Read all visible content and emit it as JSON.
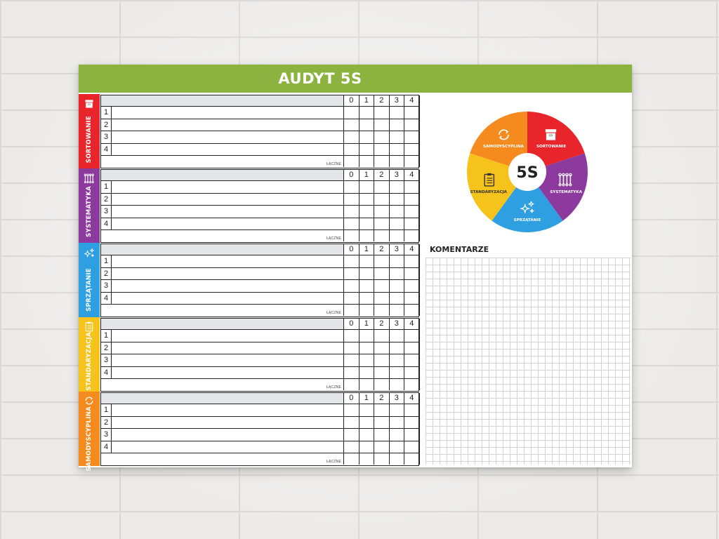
{
  "title": "AUDYT 5S",
  "score_headers": [
    "0",
    "1",
    "2",
    "3",
    "4"
  ],
  "row_numbers": [
    "1",
    "2",
    "3",
    "4"
  ],
  "total_label": "ŁĄCZNE",
  "sections": [
    {
      "label": "SORTOWANIE",
      "color": "#e8252b",
      "icon": "box-icon"
    },
    {
      "label": "SYSTEMATYKA",
      "color": "#8d3a9e",
      "icon": "tools-icon"
    },
    {
      "label": "SPRZĄTANIE",
      "color": "#2e9fe0",
      "icon": "sparkle-icon"
    },
    {
      "label": "STANDARYZACJA",
      "color": "#f6c21c",
      "icon": "clipboard-icon"
    },
    {
      "label": "SAMODYSCYPLINA",
      "color": "#f58a1f",
      "icon": "cycle-icon"
    }
  ],
  "wheel": {
    "center_label": "5S",
    "segments": [
      {
        "label": "SORTOWANIE",
        "color": "#e8252b",
        "icon": "box-icon"
      },
      {
        "label": "SYSTEMATYKA",
        "color": "#8d3a9e",
        "icon": "tools-icon"
      },
      {
        "label": "SPRZĄTANIE",
        "color": "#2e9fe0",
        "icon": "sparkle-icon"
      },
      {
        "label": "STANDARYZACJA",
        "color": "#f6c21c",
        "icon": "clipboard-icon"
      },
      {
        "label": "SAMODYSCYPLINA",
        "color": "#f58a1f",
        "icon": "cycle-icon"
      }
    ]
  },
  "comments_label": "KOMENTARZE",
  "colors": {
    "header": "#8cb33f",
    "table_header": "#e4e6ea"
  }
}
